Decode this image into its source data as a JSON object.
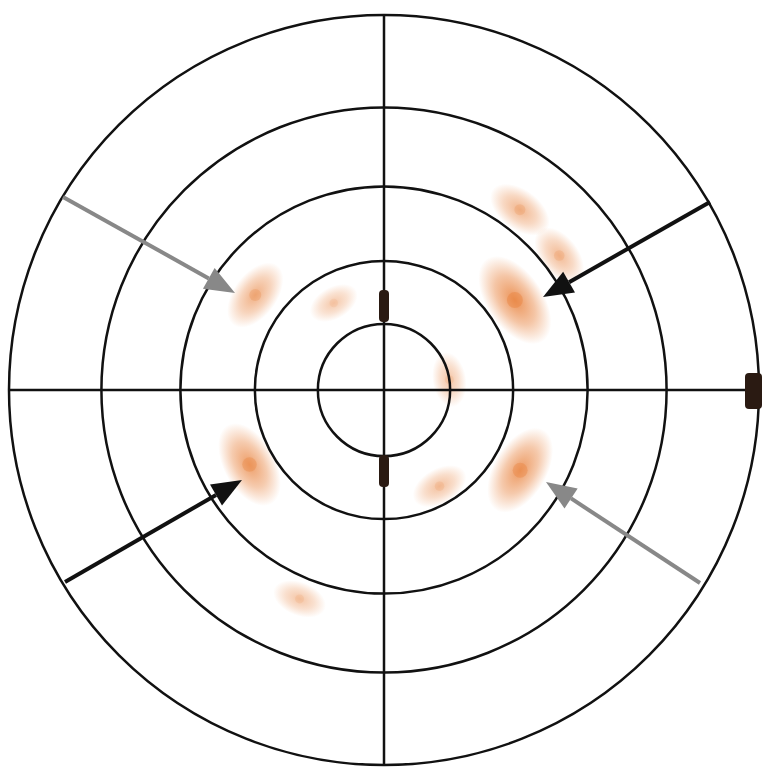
{
  "chart_data": {
    "type": "pole_figure",
    "x": [
      34.5,
      329.5,
      209,
      143.6,
      53,
      37.5,
      9,
      248,
      120,
      300
    ],
    "values": [
      45.9,
      45.7,
      44.6,
      46.2,
      62.1,
      61,
      20,
      62,
      30,
      33
    ],
    "size": [
      1.0,
      0.9,
      0.85,
      0.6,
      0.5,
      0.45,
      0.3,
      0.3,
      0.25,
      0.35
    ],
    "xlim": [
      0,
      360
    ],
    "xticks": [
      0,
      90,
      180,
      270
    ],
    "ylim": [
      0,
      90
    ],
    "yticks": [
      20,
      38,
      57,
      74,
      90
    ],
    "grid": true,
    "tick_labels": false,
    "color": "#e8803a"
  }
}
